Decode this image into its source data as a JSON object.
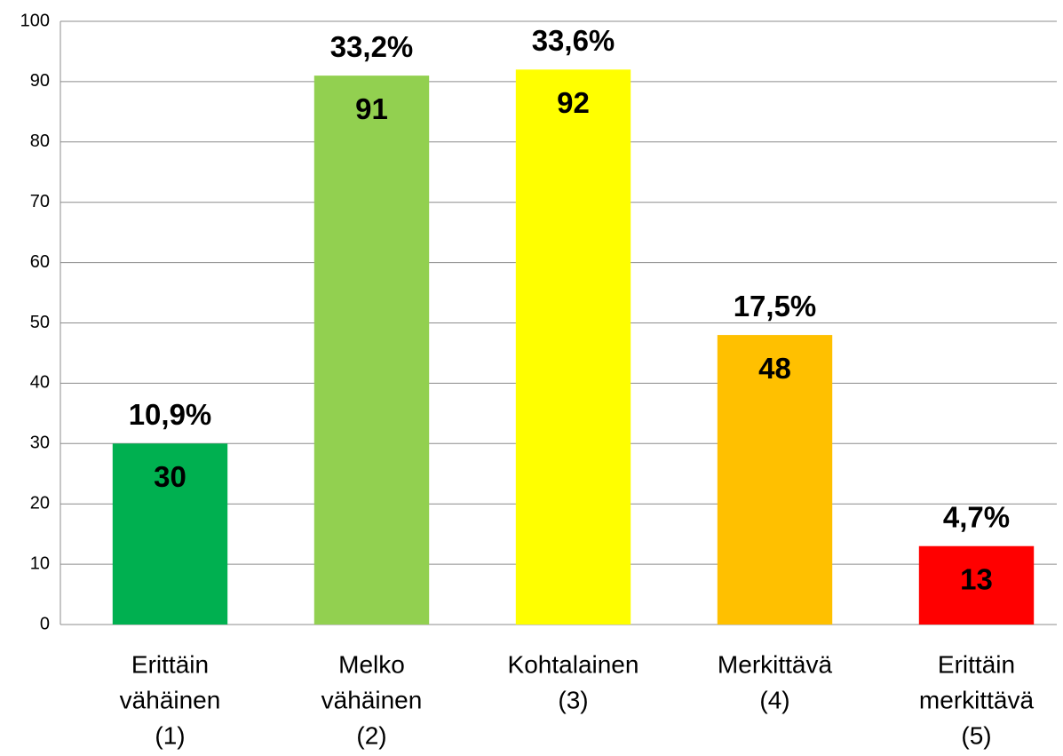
{
  "chart_data": {
    "type": "bar",
    "categories": [
      [
        "Erittäin",
        "vähäinen",
        "(1)"
      ],
      [
        "Melko",
        "vähäinen",
        "(2)"
      ],
      [
        "Kohtalainen",
        "(3)"
      ],
      [
        "Merkittävä",
        "(4)"
      ],
      [
        "Erittäin",
        "merkittävä",
        "(5)"
      ]
    ],
    "values": [
      30,
      91,
      92,
      48,
      13
    ],
    "share_labels": [
      "10,9%",
      "33,2%",
      "33,6%",
      "17,5%",
      "4,7%"
    ],
    "colors": [
      "#00b050",
      "#92d050",
      "#ffff00",
      "#ffc000",
      "#ff0000"
    ],
    "ylim": [
      0,
      100
    ],
    "yticks": [
      0,
      10,
      20,
      30,
      40,
      50,
      60,
      70,
      80,
      90,
      100
    ],
    "grid": true
  }
}
